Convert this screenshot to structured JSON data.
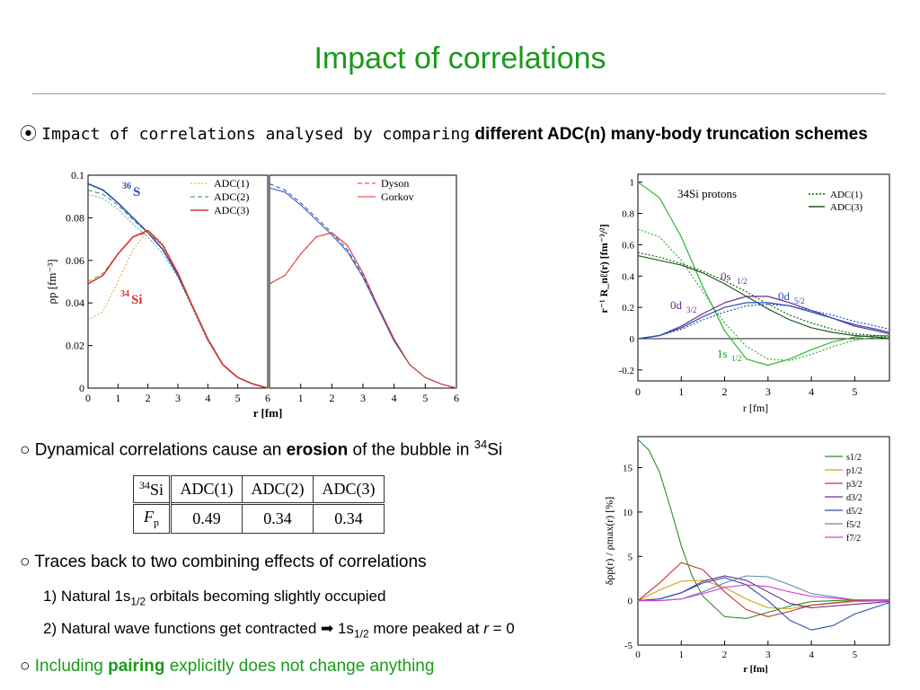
{
  "title": "Impact of correlations",
  "bullets": {
    "main_prefix": "Impact of correlations analysed by comparing",
    "main_bold": "different ADC(n) many-body truncation schemes",
    "erosion_pre": "Dynamical correlations cause an ",
    "erosion_bold": "erosion",
    "erosion_post": " of the bubble in ",
    "erosion_sup": "34",
    "erosion_end": "Si",
    "traces": "Traces back to two combining effects of correlations",
    "item1_pre": "1) Natural 1s",
    "item1_sub": "1/2",
    "item1_post": " orbitals becoming slightly occupied",
    "item2_pre": "2) Natural wave functions get contracted ",
    "item2_arrow": "➡",
    "item2_mid": " 1s",
    "item2_sub": "1/2",
    "item2_post": " more peaked at ",
    "item2_r": "r",
    "item2_eq": " = 0",
    "pairing_pre": "Including ",
    "pairing_bold": "pairing",
    "pairing_post": " explicitly does not change anything"
  },
  "table": {
    "header": [
      "Si",
      "ADC(1)",
      "ADC(2)",
      "ADC(3)"
    ],
    "header_sup": "34",
    "row_label": "F",
    "row_label_sub": "p",
    "values": [
      "0.49",
      "0.34",
      "0.34"
    ]
  },
  "colors": {
    "title": "#1a9a1a",
    "blue": "#2b4fb5",
    "red": "#d9342b",
    "green": "#2fb52f"
  },
  "chart_data": [
    {
      "type": "line",
      "panel": "density ADC comparison",
      "ylabel": "ρp [fm⁻³]",
      "xlabel": "r [fm]",
      "xlim": [
        0,
        6
      ],
      "ylim": [
        0,
        0.1
      ],
      "xticks": [
        "0",
        "1",
        "2",
        "3",
        "4",
        "5",
        "6"
      ],
      "yticks": [
        "0",
        "0.02",
        "0.04",
        "0.06",
        "0.08",
        "0.1"
      ],
      "labels": {
        "s36": "36",
        "s36b": "S",
        "si34": "34",
        "si34b": "Si"
      },
      "legend": [
        "ADC(1)",
        "ADC(2)",
        "ADC(3)"
      ],
      "series": [
        {
          "name": "ADC(1)",
          "group": "36S",
          "x": [
            0,
            0.5,
            1,
            1.5,
            2,
            2.5,
            3,
            3.5,
            4,
            4.5,
            5,
            5.5,
            6
          ],
          "values": [
            0.091,
            0.089,
            0.084,
            0.077,
            0.071,
            0.063,
            0.052,
            0.037,
            0.022,
            0.011,
            0.005,
            0.002,
            0.0
          ]
        },
        {
          "name": "ADC(2)",
          "group": "36S",
          "x": [
            0,
            0.5,
            1,
            1.5,
            2,
            2.5,
            3,
            3.5,
            4,
            4.5,
            5,
            5.5,
            6
          ],
          "values": [
            0.093,
            0.091,
            0.086,
            0.079,
            0.073,
            0.065,
            0.053,
            0.038,
            0.023,
            0.011,
            0.005,
            0.002,
            0.0
          ]
        },
        {
          "name": "ADC(3)",
          "group": "36S",
          "x": [
            0,
            0.5,
            1,
            1.5,
            2,
            2.5,
            3,
            3.5,
            4,
            4.5,
            5,
            5.5,
            6
          ],
          "values": [
            0.096,
            0.093,
            0.087,
            0.08,
            0.073,
            0.065,
            0.053,
            0.038,
            0.023,
            0.011,
            0.005,
            0.002,
            0.0
          ]
        },
        {
          "name": "ADC(1)",
          "group": "34Si",
          "x": [
            0,
            0.5,
            1,
            1.5,
            2,
            2.5,
            3,
            3.5,
            4,
            4.5,
            5,
            5.5,
            6
          ],
          "values": [
            0.032,
            0.036,
            0.05,
            0.065,
            0.074,
            0.068,
            0.054,
            0.038,
            0.023,
            0.011,
            0.005,
            0.002,
            0.0
          ]
        },
        {
          "name": "ADC(2)",
          "group": "34Si",
          "x": [
            0,
            0.5,
            1,
            1.5,
            2,
            2.5,
            3,
            3.5,
            4,
            4.5,
            5,
            5.5,
            6
          ],
          "values": [
            0.05,
            0.054,
            0.063,
            0.071,
            0.073,
            0.067,
            0.054,
            0.038,
            0.023,
            0.011,
            0.005,
            0.002,
            0.0
          ]
        },
        {
          "name": "ADC(3)",
          "group": "34Si",
          "x": [
            0,
            0.5,
            1,
            1.5,
            2,
            2.5,
            3,
            3.5,
            4,
            4.5,
            5,
            5.5,
            6
          ],
          "values": [
            0.049,
            0.053,
            0.063,
            0.071,
            0.074,
            0.067,
            0.054,
            0.038,
            0.023,
            0.011,
            0.005,
            0.002,
            0.0
          ]
        }
      ]
    },
    {
      "type": "line",
      "panel": "density Dyson vs Gorkov",
      "xlabel": "r [fm]",
      "xlim": [
        0,
        6
      ],
      "ylim": [
        0,
        0.1
      ],
      "xticks": [
        "0",
        "1",
        "2",
        "3",
        "4",
        "5",
        "6"
      ],
      "legend": [
        "Dyson",
        "Gorkov"
      ],
      "series": [
        {
          "name": "Dyson",
          "group": "36S",
          "x": [
            0,
            0.5,
            1,
            1.5,
            2,
            2.5,
            3,
            3.5,
            4,
            4.5,
            5,
            5.5,
            6
          ],
          "values": [
            0.096,
            0.093,
            0.087,
            0.08,
            0.073,
            0.065,
            0.053,
            0.038,
            0.023,
            0.011,
            0.005,
            0.002,
            0.0
          ]
        },
        {
          "name": "Gorkov",
          "group": "36S",
          "x": [
            0,
            0.5,
            1,
            1.5,
            2,
            2.5,
            3,
            3.5,
            4,
            4.5,
            5,
            5.5,
            6
          ],
          "values": [
            0.094,
            0.092,
            0.086,
            0.079,
            0.072,
            0.064,
            0.052,
            0.037,
            0.022,
            0.011,
            0.005,
            0.002,
            0.0
          ]
        },
        {
          "name": "Dyson",
          "group": "34Si",
          "x": [
            0,
            0.5,
            1,
            1.5,
            2,
            2.5,
            3,
            3.5,
            4,
            4.5,
            5,
            5.5,
            6
          ],
          "values": [
            0.049,
            0.053,
            0.063,
            0.071,
            0.073,
            0.067,
            0.054,
            0.038,
            0.023,
            0.011,
            0.005,
            0.002,
            0.0
          ]
        },
        {
          "name": "Gorkov",
          "group": "34Si",
          "x": [
            0,
            0.5,
            1,
            1.5,
            2,
            2.5,
            3,
            3.5,
            4,
            4.5,
            5,
            5.5,
            6
          ],
          "values": [
            0.049,
            0.053,
            0.063,
            0.071,
            0.073,
            0.067,
            0.054,
            0.038,
            0.023,
            0.011,
            0.005,
            0.002,
            0.0
          ]
        }
      ]
    },
    {
      "type": "line",
      "panel": "radial wave functions",
      "title": "34Si protons",
      "ylabel": "r⁻¹ R_nℓ(r) [fm⁻³/²]",
      "xlabel": "r [fm]",
      "xlim": [
        0,
        5.8
      ],
      "ylim": [
        -0.27,
        1.05
      ],
      "xticks": [
        "0",
        "1",
        "2",
        "3",
        "4",
        "5"
      ],
      "yticks": [
        "-0.2",
        "0",
        "0.2",
        "0.4",
        "0.6",
        "0.8",
        "1"
      ],
      "legend": [
        "ADC(1)",
        "ADC(3)"
      ],
      "orbital_labels": {
        "s12": "0s",
        "s12sub": "1/2",
        "d32": "0d",
        "d32sub": "3/2",
        "d52": "0d",
        "d52sub": "5/2",
        "s1": "1s",
        "s1sub": "1/2"
      },
      "series": [
        {
          "name": "ADC(3)",
          "orbital": "1s1/2",
          "x": [
            0,
            0.5,
            1,
            1.5,
            2,
            2.5,
            3,
            3.5,
            4,
            4.5,
            5,
            5.5,
            5.8
          ],
          "values": [
            1.0,
            0.9,
            0.65,
            0.33,
            0.05,
            -0.13,
            -0.17,
            -0.13,
            -0.07,
            -0.02,
            0.01,
            0.02,
            0.02
          ]
        },
        {
          "name": "ADC(1)",
          "orbital": "1s1/2",
          "x": [
            0,
            0.5,
            1,
            1.5,
            2,
            2.5,
            3,
            3.5,
            4,
            4.5,
            5,
            5.5,
            5.8
          ],
          "values": [
            0.7,
            0.65,
            0.5,
            0.3,
            0.1,
            -0.05,
            -0.13,
            -0.14,
            -0.1,
            -0.05,
            -0.01,
            0.01,
            0.01
          ]
        },
        {
          "name": "ADC(3)",
          "orbital": "0s1/2",
          "x": [
            0,
            0.5,
            1,
            1.5,
            2,
            2.5,
            3,
            3.5,
            4,
            4.5,
            5,
            5.5,
            5.8
          ],
          "values": [
            0.53,
            0.5,
            0.47,
            0.42,
            0.35,
            0.27,
            0.19,
            0.12,
            0.07,
            0.04,
            0.02,
            0.01,
            0.0
          ]
        },
        {
          "name": "ADC(1)",
          "orbital": "0s1/2",
          "x": [
            0,
            0.5,
            1,
            1.5,
            2,
            2.5,
            3,
            3.5,
            4,
            4.5,
            5,
            5.5,
            5.8
          ],
          "values": [
            0.55,
            0.52,
            0.48,
            0.43,
            0.37,
            0.3,
            0.22,
            0.15,
            0.1,
            0.06,
            0.03,
            0.02,
            0.01
          ]
        },
        {
          "name": "ADC(3)",
          "orbital": "0d5/2",
          "x": [
            0,
            0.5,
            1,
            1.5,
            2,
            2.5,
            3,
            3.5,
            4,
            4.5,
            5,
            5.5,
            5.8
          ],
          "values": [
            0.0,
            0.02,
            0.08,
            0.16,
            0.23,
            0.27,
            0.27,
            0.23,
            0.18,
            0.13,
            0.08,
            0.05,
            0.03
          ]
        },
        {
          "name": "ADC(3)",
          "orbital": "0d3/2",
          "x": [
            0,
            0.5,
            1,
            1.5,
            2,
            2.5,
            3,
            3.5,
            4,
            4.5,
            5,
            5.5,
            5.8
          ],
          "values": [
            0.0,
            0.02,
            0.07,
            0.14,
            0.2,
            0.23,
            0.23,
            0.21,
            0.17,
            0.13,
            0.09,
            0.06,
            0.04
          ]
        },
        {
          "name": "ADC(1)",
          "orbital": "0d3/2",
          "x": [
            0,
            0.5,
            1,
            1.5,
            2,
            2.5,
            3,
            3.5,
            4,
            4.5,
            5,
            5.5,
            5.8
          ],
          "values": [
            0.0,
            0.02,
            0.06,
            0.12,
            0.17,
            0.21,
            0.22,
            0.21,
            0.18,
            0.15,
            0.11,
            0.08,
            0.06
          ]
        }
      ]
    },
    {
      "type": "line",
      "panel": "density difference by partial wave",
      "ylabel": "δρp(r) / ρmax(r) [%]",
      "xlabel": "r [fm]",
      "xlim": [
        0,
        5.8
      ],
      "ylim": [
        -5,
        18.5
      ],
      "xticks": [
        "0",
        "1",
        "2",
        "3",
        "4",
        "5"
      ],
      "yticks": [
        "-5",
        "0",
        "5",
        "10",
        "15"
      ],
      "legend": [
        "s1/2",
        "p1/2",
        "p3/2",
        "d3/2",
        "d5/2",
        "f5/2",
        "f7/2"
      ],
      "series": [
        {
          "name": "s1/2",
          "x": [
            0,
            0.25,
            0.5,
            0.75,
            1,
            1.25,
            1.5,
            2,
            2.5,
            3,
            3.5,
            4,
            5,
            5.8
          ],
          "values": [
            18.2,
            17,
            14.5,
            10.5,
            6.2,
            2.8,
            0.5,
            -1.8,
            -2,
            -1.3,
            -0.6,
            -0.1,
            0.1,
            0.1
          ]
        },
        {
          "name": "p1/2",
          "x": [
            0,
            0.5,
            1,
            1.5,
            2,
            2.5,
            3,
            3.5,
            4,
            5,
            5.8
          ],
          "values": [
            0,
            1.2,
            2.2,
            2.3,
            1.5,
            0.2,
            -0.8,
            -0.9,
            -0.5,
            -0.1,
            0
          ]
        },
        {
          "name": "p3/2",
          "x": [
            0,
            0.5,
            1,
            1.5,
            2,
            2.5,
            3,
            3.5,
            4,
            5,
            5.8
          ],
          "values": [
            0,
            2,
            4.3,
            3.5,
            1,
            -1,
            -1.8,
            -1.2,
            -0.5,
            0,
            0
          ]
        },
        {
          "name": "d3/2",
          "x": [
            0,
            0.5,
            1,
            1.5,
            2,
            2.5,
            3,
            3.5,
            4,
            5,
            5.8
          ],
          "values": [
            0,
            0.2,
            0.9,
            2.2,
            2.8,
            2.3,
            1,
            -0.3,
            -0.8,
            -0.4,
            -0.1
          ]
        },
        {
          "name": "d5/2",
          "x": [
            0,
            0.5,
            1,
            1.5,
            2,
            2.5,
            3,
            3.5,
            4,
            4.5,
            5,
            5.8
          ],
          "values": [
            0,
            0.2,
            0.9,
            2,
            2.6,
            1.8,
            0,
            -2.2,
            -3.3,
            -2.8,
            -1.5,
            -0.2
          ]
        },
        {
          "name": "f5/2",
          "x": [
            0,
            0.5,
            1,
            1.5,
            2,
            2.5,
            3,
            3.5,
            4,
            5,
            5.8
          ],
          "values": [
            0,
            0,
            0.2,
            1,
            2,
            2.8,
            2.7,
            1.8,
            0.8,
            0.1,
            0
          ]
        },
        {
          "name": "f7/2",
          "x": [
            0,
            0.5,
            1,
            1.5,
            2,
            2.5,
            3,
            3.5,
            4,
            5,
            5.8
          ],
          "values": [
            0,
            0,
            0.2,
            0.8,
            1.5,
            1.8,
            1.6,
            1,
            0.5,
            0.1,
            0
          ]
        }
      ]
    }
  ]
}
